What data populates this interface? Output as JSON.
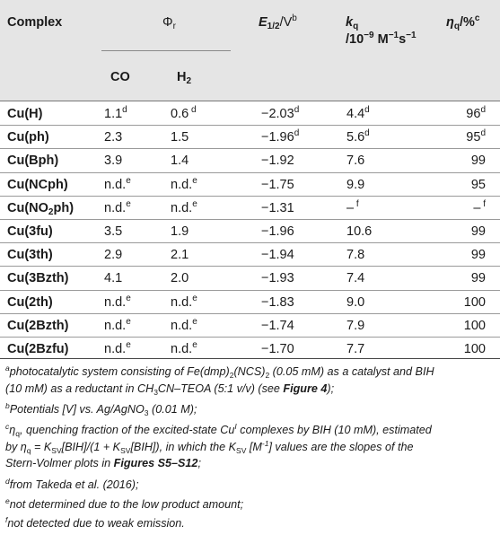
{
  "header": {
    "complex": "Complex",
    "phi": "Φ",
    "phi_sub": "r",
    "co": "CO",
    "h2": "H",
    "h2_sub": "2",
    "e_half": "E",
    "e_half_sub": "1/2",
    "e_half_unit": "/V",
    "e_half_sup": "b",
    "kq": "k",
    "kq_sub": "q",
    "kq_unit_1": "/10",
    "kq_unit_sup1": "−9",
    "kq_unit_2": " M",
    "kq_unit_sup2": "−1",
    "kq_unit_3": "s",
    "kq_unit_sup3": "−1",
    "eta": "η",
    "eta_sub": "q",
    "eta_unit": "/%",
    "eta_sup": "c"
  },
  "rows": [
    {
      "name": "Cu(H)",
      "co": "1.1",
      "co_sup": "d",
      "h2": "0.6",
      "h2_sup": " d",
      "e": "−2.03",
      "e_sup": "d",
      "kq": "4.4",
      "kq_sup": "d",
      "eta": "96",
      "eta_sup": "d"
    },
    {
      "name": "Cu(ph)",
      "co": "2.3",
      "co_sup": "",
      "h2": "1.5",
      "h2_sup": "",
      "e": "−1.96",
      "e_sup": "d",
      "kq": "5.6",
      "kq_sup": "d",
      "eta": "95",
      "eta_sup": "d"
    },
    {
      "name": "Cu(Bph)",
      "co": "3.9",
      "co_sup": "",
      "h2": "1.4",
      "h2_sup": "",
      "e": "−1.92",
      "e_sup": "",
      "kq": "7.6",
      "kq_sup": "",
      "eta": "99",
      "eta_sup": ""
    },
    {
      "name": "Cu(NCph)",
      "co": "n.d.",
      "co_sup": "e",
      "h2": "n.d.",
      "h2_sup": "e",
      "e": "−1.75",
      "e_sup": "",
      "kq": "9.9",
      "kq_sup": "",
      "eta": "95",
      "eta_sup": ""
    },
    {
      "name_pre": "Cu(NO",
      "name_sub": "2",
      "name_post": "ph)",
      "co": "n.d.",
      "co_sup": "e",
      "h2": "n.d.",
      "h2_sup": "e",
      "e": "−1.31",
      "e_sup": "",
      "kq": "–",
      "kq_sup": " f",
      "eta": "–",
      "eta_sup": " f"
    },
    {
      "name": "Cu(3fu)",
      "co": "3.5",
      "co_sup": "",
      "h2": "1.9",
      "h2_sup": "",
      "e": "−1.96",
      "e_sup": "",
      "kq": "10.6",
      "kq_sup": "",
      "eta": "99",
      "eta_sup": ""
    },
    {
      "name": "Cu(3th)",
      "co": "2.9",
      "co_sup": "",
      "h2": "2.1",
      "h2_sup": "",
      "e": "−1.94",
      "e_sup": "",
      "kq": "7.8",
      "kq_sup": "",
      "eta": "99",
      "eta_sup": ""
    },
    {
      "name": "Cu(3Bzth)",
      "co": "4.1",
      "co_sup": "",
      "h2": "2.0",
      "h2_sup": "",
      "e": "−1.93",
      "e_sup": "",
      "kq": "7.4",
      "kq_sup": "",
      "eta": "99",
      "eta_sup": ""
    },
    {
      "name": "Cu(2th)",
      "co": "n.d.",
      "co_sup": "e",
      "h2": "n.d.",
      "h2_sup": "e",
      "e": "−1.83",
      "e_sup": "",
      "kq": "9.0",
      "kq_sup": "",
      "eta": "100",
      "eta_sup": ""
    },
    {
      "name": "Cu(2Bzth)",
      "co": "n.d.",
      "co_sup": "e",
      "h2": "n.d.",
      "h2_sup": "e",
      "e": "−1.74",
      "e_sup": "",
      "kq": "7.9",
      "kq_sup": "",
      "eta": "100",
      "eta_sup": ""
    },
    {
      "name": "Cu(2Bzfu)",
      "co": "n.d.",
      "co_sup": "e",
      "h2": "n.d.",
      "h2_sup": "e",
      "e": "−1.70",
      "e_sup": "",
      "kq": "7.7",
      "kq_sup": "",
      "eta": "100",
      "eta_sup": ""
    }
  ],
  "footnotes": {
    "a": {
      "mark": "a",
      "t1": "photocatalytic system consisting of Fe(dmp)",
      "s1": "2",
      "t2": "(NCS)",
      "s2": "2",
      "t3": " (0.05 mM) as a catalyst and BIH",
      "t4": "(10 mM) as a reductant in CH",
      "s3": "3",
      "t5": "CN–TEOA (5:1 v/v) (see ",
      "ref": "Figure 4",
      "t6": ");"
    },
    "b": {
      "mark": "b",
      "text": "Potentials [V] vs. Ag/AgNO",
      "sub": "3",
      "text2": " (0.01 M);"
    },
    "c": {
      "mark": "c",
      "t1": "η",
      "s1": "q",
      "t2": ", quenching fraction of the excited-state Cu",
      "sup1": "I",
      "t3": " complexes by BIH (10 mM), estimated",
      "t4": "by η",
      "s2": "q",
      "t5": " = K",
      "s3": "SV",
      "t6": "[BIH]/(1 + K",
      "s4": "SV",
      "t7": "[BIH]), in which the K",
      "s5": "SV",
      "t8": " [M",
      "sup2": "-1",
      "t9": "] values are the slopes of the",
      "t10": "Stern-Volmer plots in ",
      "ref": "Figures S5–S12",
      "t11": ";"
    },
    "d": {
      "mark": "d",
      "text": "from Takeda et al. (2016);"
    },
    "e": {
      "mark": "e",
      "text": "not determined due to the low product amount;"
    },
    "f": {
      "mark": "f",
      "text": "not detected due to weak emission."
    }
  }
}
